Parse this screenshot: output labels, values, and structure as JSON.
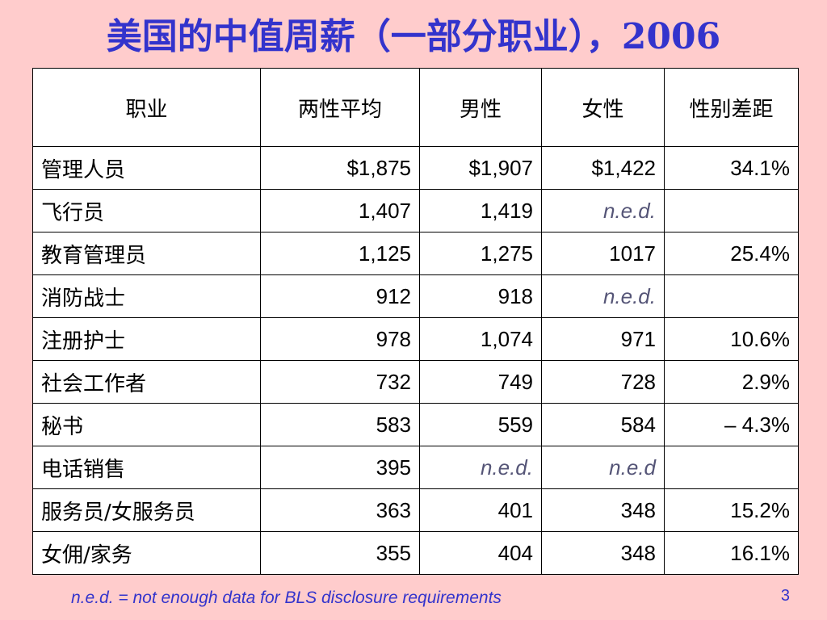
{
  "slide": {
    "title": "美国的中值周薪（一部分职业），2006",
    "footnote": "n.e.d. = not enough data for BLS disclosure requirements",
    "page_number": "3"
  },
  "table": {
    "headers": [
      "职业",
      "两性平均",
      "男性",
      "女性",
      "性别差距"
    ],
    "rows": [
      {
        "occupation": "管理人员",
        "both": "$1,875",
        "men": "$1,907",
        "women": "$1,422",
        "gap": "34.1%"
      },
      {
        "occupation": "飞行员",
        "both": "1,407",
        "men": "1,419",
        "women": "n.e.d.",
        "gap": ""
      },
      {
        "occupation": "教育管理员",
        "both": "1,125",
        "men": "1,275",
        "women": "1017",
        "gap": "25.4%"
      },
      {
        "occupation": "消防战士",
        "both": "912",
        "men": "918",
        "women": "n.e.d.",
        "gap": ""
      },
      {
        "occupation": "注册护士",
        "both": "978",
        "men": "1,074",
        "women": "971",
        "gap": "10.6%"
      },
      {
        "occupation": "社会工作者",
        "both": "732",
        "men": "749",
        "women": "728",
        "gap": "2.9%"
      },
      {
        "occupation": "秘书",
        "both": "583",
        "men": "559",
        "women": "584",
        "gap": "– 4.3%"
      },
      {
        "occupation": "电话销售",
        "both": "395",
        "men": "n.e.d.",
        "women": "n.e.d",
        "gap": ""
      },
      {
        "occupation": "服务员/女服务员",
        "both": "363",
        "men": "401",
        "women": "348",
        "gap": "15.2%"
      },
      {
        "occupation": "女佣/家务",
        "both": "355",
        "men": "404",
        "women": "348",
        "gap": "16.1%"
      }
    ]
  },
  "colors": {
    "background": "#FFCCCC",
    "title": "#3333CC",
    "table_background": "#FFFFFF",
    "ned_text": "#555577"
  }
}
